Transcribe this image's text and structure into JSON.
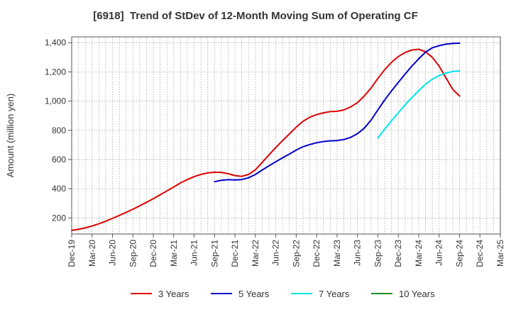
{
  "chart_data": {
    "type": "line",
    "title": "[6918]  Trend of StDev of 12-Month Moving Sum of Operating CF",
    "ylabel": "Amount (million yen)",
    "xlabel": "",
    "ylim": [
      90,
      1440
    ],
    "yticks": [
      200,
      400,
      600,
      800,
      1000,
      1200,
      1400
    ],
    "ytick_labels": [
      "200",
      "400",
      "600",
      "800",
      "1,000",
      "1,200",
      "1,400"
    ],
    "x_range": [
      "2019-12",
      "2025-03"
    ],
    "xticks": [
      "2019-12",
      "2020-03",
      "2020-06",
      "2020-09",
      "2020-12",
      "2021-03",
      "2021-06",
      "2021-09",
      "2021-12",
      "2022-03",
      "2022-06",
      "2022-09",
      "2022-12",
      "2023-03",
      "2023-06",
      "2023-09",
      "2023-12",
      "2024-03",
      "2024-06",
      "2024-09",
      "2024-12",
      "2025-03"
    ],
    "xtick_labels": [
      "Dec-19",
      "Mar-20",
      "Jun-20",
      "Sep-20",
      "Dec-20",
      "Mar-21",
      "Jun-21",
      "Sep-21",
      "Dec-21",
      "Mar-22",
      "Jun-22",
      "Sep-22",
      "Dec-22",
      "Mar-23",
      "Jun-23",
      "Sep-23",
      "Dec-23",
      "Mar-24",
      "Jun-24",
      "Sep-24",
      "Dec-24",
      "Mar-25"
    ],
    "grid": true,
    "legend_position": "bottom",
    "series": [
      {
        "name": "3 Years",
        "color": "#dd0000",
        "points": [
          [
            "2019-12",
            115
          ],
          [
            "2020-01",
            122
          ],
          [
            "2020-02",
            132
          ],
          [
            "2020-03",
            145
          ],
          [
            "2020-04",
            160
          ],
          [
            "2020-05",
            178
          ],
          [
            "2020-06",
            197
          ],
          [
            "2020-07",
            217
          ],
          [
            "2020-08",
            238
          ],
          [
            "2020-09",
            260
          ],
          [
            "2020-10",
            283
          ],
          [
            "2020-11",
            307
          ],
          [
            "2020-12",
            332
          ],
          [
            "2021-01",
            358
          ],
          [
            "2021-02",
            385
          ],
          [
            "2021-03",
            412
          ],
          [
            "2021-04",
            440
          ],
          [
            "2021-05",
            463
          ],
          [
            "2021-06",
            483
          ],
          [
            "2021-07",
            498
          ],
          [
            "2021-08",
            508
          ],
          [
            "2021-09",
            513
          ],
          [
            "2021-10",
            512
          ],
          [
            "2021-11",
            503
          ],
          [
            "2021-12",
            490
          ],
          [
            "2022-01",
            485
          ],
          [
            "2022-02",
            498
          ],
          [
            "2022-03",
            530
          ],
          [
            "2022-04",
            580
          ],
          [
            "2022-05",
            632
          ],
          [
            "2022-06",
            682
          ],
          [
            "2022-07",
            730
          ],
          [
            "2022-08",
            775
          ],
          [
            "2022-09",
            822
          ],
          [
            "2022-10",
            862
          ],
          [
            "2022-11",
            890
          ],
          [
            "2022-12",
            908
          ],
          [
            "2023-01",
            920
          ],
          [
            "2023-02",
            928
          ],
          [
            "2023-03",
            930
          ],
          [
            "2023-04",
            940
          ],
          [
            "2023-05",
            960
          ],
          [
            "2023-06",
            990
          ],
          [
            "2023-07",
            1035
          ],
          [
            "2023-08",
            1090
          ],
          [
            "2023-09",
            1155
          ],
          [
            "2023-10",
            1215
          ],
          [
            "2023-11",
            1265
          ],
          [
            "2023-12",
            1305
          ],
          [
            "2024-01",
            1333
          ],
          [
            "2024-02",
            1350
          ],
          [
            "2024-03",
            1355
          ],
          [
            "2024-04",
            1338
          ],
          [
            "2024-05",
            1300
          ],
          [
            "2024-06",
            1240
          ],
          [
            "2024-07",
            1160
          ],
          [
            "2024-08",
            1080
          ],
          [
            "2024-09",
            1035
          ]
        ]
      },
      {
        "name": "5 Years",
        "color": "#0000cc",
        "points": [
          [
            "2021-09",
            448
          ],
          [
            "2021-10",
            458
          ],
          [
            "2021-11",
            462
          ],
          [
            "2021-12",
            460
          ],
          [
            "2022-01",
            463
          ],
          [
            "2022-02",
            475
          ],
          [
            "2022-03",
            498
          ],
          [
            "2022-04",
            528
          ],
          [
            "2022-05",
            557
          ],
          [
            "2022-06",
            585
          ],
          [
            "2022-07",
            612
          ],
          [
            "2022-08",
            638
          ],
          [
            "2022-09",
            665
          ],
          [
            "2022-10",
            688
          ],
          [
            "2022-11",
            703
          ],
          [
            "2022-12",
            715
          ],
          [
            "2023-01",
            723
          ],
          [
            "2023-02",
            728
          ],
          [
            "2023-03",
            730
          ],
          [
            "2023-04",
            737
          ],
          [
            "2023-05",
            752
          ],
          [
            "2023-06",
            777
          ],
          [
            "2023-07",
            815
          ],
          [
            "2023-08",
            870
          ],
          [
            "2023-09",
            940
          ],
          [
            "2023-10",
            1008
          ],
          [
            "2023-11",
            1070
          ],
          [
            "2023-12",
            1128
          ],
          [
            "2024-01",
            1185
          ],
          [
            "2024-02",
            1240
          ],
          [
            "2024-03",
            1290
          ],
          [
            "2024-04",
            1335
          ],
          [
            "2024-05",
            1365
          ],
          [
            "2024-06",
            1380
          ],
          [
            "2024-07",
            1390
          ],
          [
            "2024-08",
            1395
          ],
          [
            "2024-09",
            1397
          ]
        ]
      },
      {
        "name": "7 Years",
        "color": "#00e5ee",
        "points": [
          [
            "2023-09",
            748
          ],
          [
            "2023-10",
            808
          ],
          [
            "2023-11",
            865
          ],
          [
            "2023-12",
            920
          ],
          [
            "2024-01",
            975
          ],
          [
            "2024-02",
            1025
          ],
          [
            "2024-03",
            1072
          ],
          [
            "2024-04",
            1115
          ],
          [
            "2024-05",
            1150
          ],
          [
            "2024-06",
            1175
          ],
          [
            "2024-07",
            1192
          ],
          [
            "2024-08",
            1203
          ],
          [
            "2024-09",
            1207
          ]
        ]
      },
      {
        "name": "10 Years",
        "color": "#228B22",
        "points": []
      }
    ]
  }
}
